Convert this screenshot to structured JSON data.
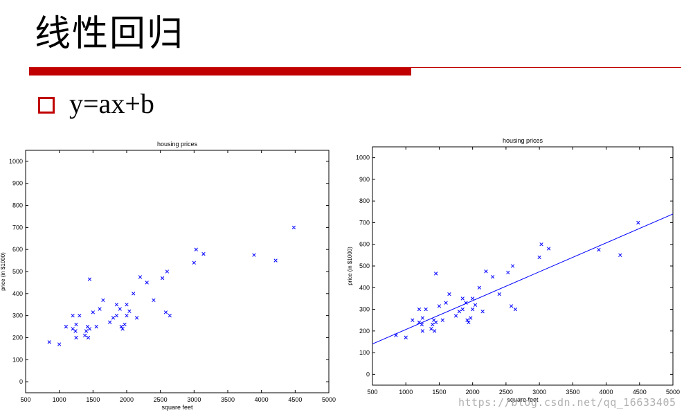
{
  "slide": {
    "title": "线性回归",
    "formula": "y=ax+b",
    "watermark": "https://blog.csdn.net/qq_16633405",
    "accent_color": "#c00000",
    "bullet_icon": "hollow-square-icon"
  },
  "chart_data": [
    {
      "type": "scatter",
      "title": "housing prices",
      "xlabel": "square feet",
      "ylabel": "price (in $1000)",
      "xlim": [
        500,
        5000
      ],
      "ylim": [
        -50,
        1050
      ],
      "xticks": [
        500,
        1000,
        1500,
        2000,
        2500,
        3000,
        3500,
        4000,
        4500,
        5000
      ],
      "yticks": [
        0,
        100,
        200,
        300,
        400,
        500,
        600,
        700,
        800,
        900,
        1000
      ],
      "grid": false,
      "marker": "x",
      "color": "#0000ff",
      "series": [
        {
          "x": [
            852,
            1000,
            1100,
            1200,
            1200,
            1240,
            1250,
            1250,
            1300,
            1380,
            1400,
            1420,
            1430,
            1450,
            1450,
            1500,
            1550,
            1600,
            1650,
            1750,
            1800,
            1850,
            1850,
            1900,
            1920,
            1940,
            1970,
            2000,
            2000,
            2040,
            2100,
            2150,
            2200,
            2300,
            2400,
            2530,
            2580,
            2600,
            2640,
            3000,
            3030,
            3140,
            3890,
            4210,
            4480
          ],
          "y": [
            180,
            170,
            250,
            300,
            240,
            230,
            200,
            260,
            300,
            210,
            230,
            250,
            200,
            465,
            240,
            315,
            250,
            330,
            370,
            270,
            290,
            350,
            300,
            330,
            250,
            240,
            260,
            300,
            350,
            320,
            400,
            290,
            475,
            450,
            370,
            470,
            315,
            500,
            300,
            540,
            600,
            580,
            575,
            550,
            700
          ]
        }
      ]
    },
    {
      "type": "scatter",
      "title": "housing prices",
      "xlabel": "square feet",
      "ylabel": "price (in $1000)",
      "xlim": [
        500,
        5000
      ],
      "ylim": [
        -50,
        1050
      ],
      "xticks": [
        500,
        1000,
        1500,
        2000,
        2500,
        3000,
        3500,
        4000,
        4500,
        5000
      ],
      "yticks": [
        0,
        100,
        200,
        300,
        400,
        500,
        600,
        700,
        800,
        900,
        1000
      ],
      "grid": false,
      "marker": "x",
      "color": "#0000ff",
      "series": [
        {
          "x": [
            852,
            1000,
            1100,
            1200,
            1200,
            1240,
            1250,
            1250,
            1300,
            1380,
            1400,
            1420,
            1430,
            1450,
            1450,
            1500,
            1550,
            1600,
            1650,
            1750,
            1800,
            1850,
            1850,
            1900,
            1920,
            1940,
            1970,
            2000,
            2000,
            2040,
            2100,
            2150,
            2200,
            2300,
            2400,
            2530,
            2580,
            2600,
            2640,
            3000,
            3030,
            3140,
            3890,
            4210,
            4480
          ],
          "y": [
            180,
            170,
            250,
            300,
            240,
            230,
            200,
            260,
            300,
            210,
            230,
            250,
            200,
            465,
            240,
            315,
            250,
            330,
            370,
            270,
            290,
            350,
            300,
            330,
            250,
            240,
            260,
            300,
            350,
            320,
            400,
            290,
            475,
            450,
            370,
            470,
            315,
            500,
            300,
            540,
            600,
            580,
            575,
            550,
            700
          ]
        }
      ],
      "fit_line": {
        "x": [
          500,
          5000
        ],
        "y": [
          140,
          740
        ]
      }
    }
  ]
}
